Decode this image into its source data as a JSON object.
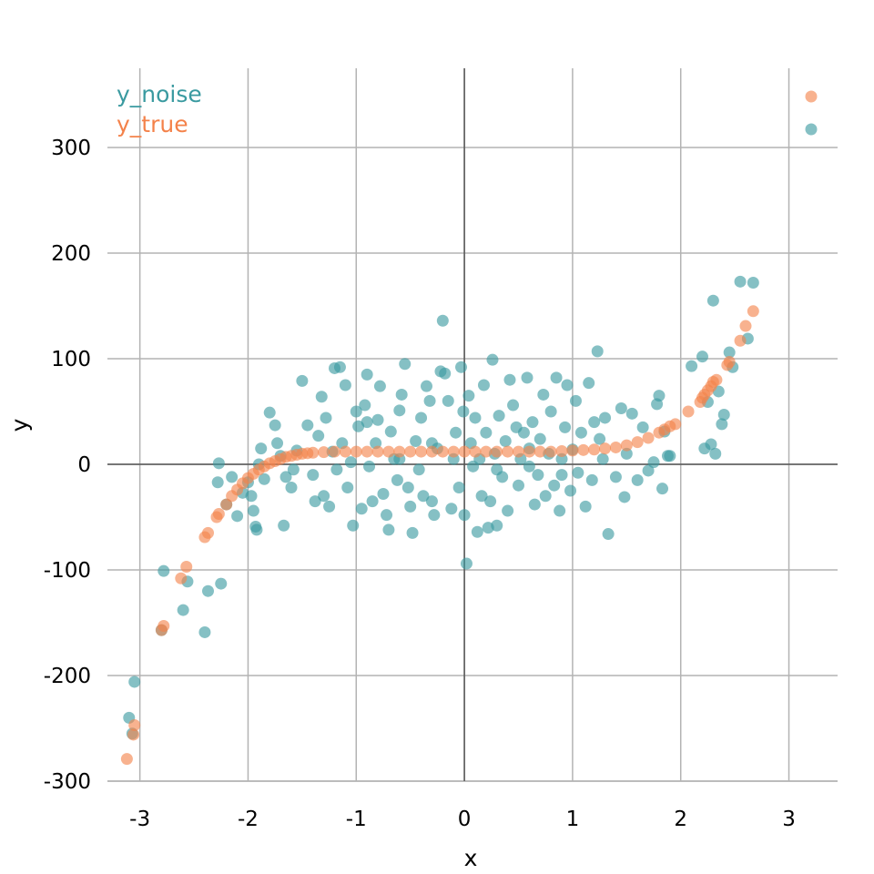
{
  "chart_data": {
    "type": "scatter",
    "title": "",
    "xlabel": "x",
    "ylabel": "y",
    "xlim": [
      -3.3,
      3.45
    ],
    "ylim": [
      -300,
      375
    ],
    "grid": true,
    "legend_position": "top-left",
    "x_ticks": [
      -3,
      -2,
      -1,
      0,
      1,
      2,
      3
    ],
    "y_ticks": [
      -300,
      -200,
      -100,
      0,
      100,
      200,
      300
    ],
    "x_tick_labels": [
      "-3",
      "-2",
      "-1",
      "0",
      "1",
      "2",
      "3"
    ],
    "y_tick_labels": [
      "-300",
      "-200",
      "-100",
      "0",
      "100",
      "200",
      "300"
    ],
    "series": [
      {
        "name": "y_noise",
        "color": "#3a9aa0",
        "points": [
          [
            -3.1,
            -240
          ],
          [
            -3.05,
            -206
          ],
          [
            -3.07,
            -255
          ],
          [
            -2.8,
            -157
          ],
          [
            -2.78,
            -101
          ],
          [
            -2.6,
            -138
          ],
          [
            -2.56,
            -111
          ],
          [
            -2.4,
            -159
          ],
          [
            -2.37,
            -120
          ],
          [
            -2.25,
            -113
          ],
          [
            -2.27,
            1
          ],
          [
            -2.28,
            -17
          ],
          [
            -2.2,
            -38
          ],
          [
            -2.15,
            -12
          ],
          [
            -2.1,
            -49
          ],
          [
            -2.05,
            -27
          ],
          [
            -2.0,
            -17
          ],
          [
            -1.97,
            -30
          ],
          [
            -1.95,
            -44
          ],
          [
            -1.93,
            -59
          ],
          [
            -1.92,
            -62
          ],
          [
            -1.9,
            0
          ],
          [
            -1.88,
            15
          ],
          [
            -1.85,
            -14
          ],
          [
            -1.8,
            49
          ],
          [
            -1.75,
            37
          ],
          [
            -1.73,
            20
          ],
          [
            -1.7,
            8
          ],
          [
            -1.67,
            -58
          ],
          [
            -1.65,
            -12
          ],
          [
            -1.6,
            -22
          ],
          [
            -1.58,
            -5
          ],
          [
            -1.55,
            13
          ],
          [
            -1.5,
            79
          ],
          [
            -1.45,
            37
          ],
          [
            -1.4,
            -10
          ],
          [
            -1.38,
            -35
          ],
          [
            -1.35,
            27
          ],
          [
            -1.32,
            64
          ],
          [
            -1.3,
            -30
          ],
          [
            -1.28,
            44
          ],
          [
            -1.25,
            -40
          ],
          [
            -1.22,
            12
          ],
          [
            -1.2,
            91
          ],
          [
            -1.18,
            -5
          ],
          [
            -1.15,
            92
          ],
          [
            -1.13,
            20
          ],
          [
            -1.1,
            75
          ],
          [
            -1.08,
            -22
          ],
          [
            -1.05,
            2
          ],
          [
            -1.03,
            -58
          ],
          [
            -1.0,
            50
          ],
          [
            -0.98,
            36
          ],
          [
            -0.95,
            -42
          ],
          [
            -0.92,
            56
          ],
          [
            -0.9,
            85
          ],
          [
            -0.88,
            -2
          ],
          [
            -0.85,
            -35
          ],
          [
            -0.82,
            20
          ],
          [
            -0.8,
            42
          ],
          [
            -0.78,
            74
          ],
          [
            -0.75,
            -28
          ],
          [
            -0.72,
            -48
          ],
          [
            -0.7,
            -62
          ],
          [
            -0.68,
            31
          ],
          [
            -0.65,
            5
          ],
          [
            -0.62,
            -15
          ],
          [
            -0.6,
            51
          ],
          [
            -0.58,
            66
          ],
          [
            -0.55,
            95
          ],
          [
            -0.52,
            -22
          ],
          [
            -0.5,
            -40
          ],
          [
            -0.48,
            -65
          ],
          [
            -0.45,
            22
          ],
          [
            -0.42,
            -5
          ],
          [
            -0.4,
            44
          ],
          [
            -0.38,
            -30
          ],
          [
            -0.35,
            74
          ],
          [
            -0.32,
            60
          ],
          [
            -0.3,
            -35
          ],
          [
            -0.28,
            -48
          ],
          [
            -0.25,
            15
          ],
          [
            -0.22,
            88
          ],
          [
            -0.2,
            136
          ],
          [
            -0.18,
            86
          ],
          [
            -0.15,
            60
          ],
          [
            -0.12,
            -42
          ],
          [
            -0.1,
            5
          ],
          [
            -0.08,
            30
          ],
          [
            -0.05,
            -22
          ],
          [
            -0.03,
            92
          ],
          [
            -0.01,
            50
          ],
          [
            0.0,
            -48
          ],
          [
            0.02,
            -94
          ],
          [
            0.04,
            65
          ],
          [
            0.06,
            20
          ],
          [
            0.08,
            -2
          ],
          [
            0.1,
            44
          ],
          [
            0.12,
            -64
          ],
          [
            0.14,
            5
          ],
          [
            0.16,
            -30
          ],
          [
            0.18,
            75
          ],
          [
            0.2,
            30
          ],
          [
            0.22,
            -60
          ],
          [
            0.24,
            -35
          ],
          [
            0.26,
            99
          ],
          [
            0.28,
            10
          ],
          [
            0.3,
            -58
          ],
          [
            0.32,
            46
          ],
          [
            0.35,
            -12
          ],
          [
            0.38,
            22
          ],
          [
            0.4,
            -44
          ],
          [
            0.42,
            80
          ],
          [
            0.45,
            56
          ],
          [
            0.48,
            35
          ],
          [
            0.5,
            -20
          ],
          [
            0.52,
            5
          ],
          [
            0.55,
            30
          ],
          [
            0.58,
            82
          ],
          [
            0.6,
            -2
          ],
          [
            0.63,
            40
          ],
          [
            0.65,
            -38
          ],
          [
            0.68,
            -10
          ],
          [
            0.7,
            24
          ],
          [
            0.73,
            66
          ],
          [
            0.75,
            -30
          ],
          [
            0.78,
            10
          ],
          [
            0.8,
            50
          ],
          [
            0.83,
            -20
          ],
          [
            0.85,
            82
          ],
          [
            0.88,
            -44
          ],
          [
            0.9,
            5
          ],
          [
            0.93,
            35
          ],
          [
            0.95,
            75
          ],
          [
            0.98,
            -25
          ],
          [
            1.0,
            14
          ],
          [
            1.03,
            60
          ],
          [
            1.05,
            -8
          ],
          [
            1.08,
            30
          ],
          [
            1.12,
            -40
          ],
          [
            1.15,
            77
          ],
          [
            1.18,
            -15
          ],
          [
            1.2,
            40
          ],
          [
            1.23,
            107
          ],
          [
            1.25,
            24
          ],
          [
            1.28,
            5
          ],
          [
            1.3,
            44
          ],
          [
            1.33,
            -66
          ],
          [
            1.4,
            -12
          ],
          [
            1.45,
            53
          ],
          [
            1.48,
            -31
          ],
          [
            1.5,
            10
          ],
          [
            1.55,
            48
          ],
          [
            1.6,
            -15
          ],
          [
            1.65,
            35
          ],
          [
            1.7,
            -6
          ],
          [
            1.75,
            2
          ],
          [
            1.78,
            57
          ],
          [
            1.8,
            65
          ],
          [
            1.83,
            -23
          ],
          [
            1.85,
            31
          ],
          [
            1.88,
            8
          ],
          [
            1.9,
            8
          ],
          [
            2.1,
            93
          ],
          [
            2.2,
            102
          ],
          [
            2.22,
            15
          ],
          [
            2.25,
            59
          ],
          [
            2.28,
            19
          ],
          [
            2.3,
            155
          ],
          [
            2.32,
            10
          ],
          [
            2.35,
            69
          ],
          [
            2.38,
            38
          ],
          [
            2.4,
            47
          ],
          [
            2.45,
            106
          ],
          [
            2.48,
            92
          ],
          [
            2.55,
            173
          ],
          [
            2.62,
            119
          ],
          [
            2.67,
            172
          ],
          [
            -0.9,
            40
          ],
          [
            -0.6,
            5
          ],
          [
            -0.3,
            20
          ],
          [
            0.3,
            -5
          ],
          [
            0.6,
            15
          ],
          [
            0.9,
            -10
          ]
        ]
      },
      {
        "name": "y_true",
        "color": "#f4824a",
        "points": [
          [
            -3.12,
            -279
          ],
          [
            -3.05,
            -247
          ],
          [
            -3.06,
            -256
          ],
          [
            -2.8,
            -157
          ],
          [
            -2.78,
            -153
          ],
          [
            -2.62,
            -108
          ],
          [
            -2.57,
            -97
          ],
          [
            -2.4,
            -69
          ],
          [
            -2.37,
            -65
          ],
          [
            -2.29,
            -50
          ],
          [
            -2.27,
            -47
          ],
          [
            -2.2,
            -38
          ],
          [
            -2.15,
            -30
          ],
          [
            -2.1,
            -24
          ],
          [
            -2.05,
            -18
          ],
          [
            -2.0,
            -13
          ],
          [
            -1.95,
            -9
          ],
          [
            -1.9,
            -5
          ],
          [
            -1.85,
            -2
          ],
          [
            -1.8,
            1
          ],
          [
            -1.75,
            3
          ],
          [
            -1.7,
            5
          ],
          [
            -1.65,
            7
          ],
          [
            -1.6,
            8
          ],
          [
            -1.55,
            9
          ],
          [
            -1.5,
            10
          ],
          [
            -1.45,
            10.5
          ],
          [
            -1.4,
            11
          ],
          [
            -1.3,
            11.5
          ],
          [
            -1.2,
            12
          ],
          [
            -1.1,
            12
          ],
          [
            -1.0,
            12
          ],
          [
            -0.9,
            12
          ],
          [
            -0.8,
            12
          ],
          [
            -0.7,
            12
          ],
          [
            -0.6,
            12
          ],
          [
            -0.5,
            12
          ],
          [
            -0.4,
            12
          ],
          [
            -0.3,
            12
          ],
          [
            -0.2,
            12
          ],
          [
            -0.1,
            12
          ],
          [
            0.0,
            12
          ],
          [
            0.1,
            12
          ],
          [
            0.2,
            12
          ],
          [
            0.3,
            12
          ],
          [
            0.4,
            12
          ],
          [
            0.5,
            12
          ],
          [
            0.6,
            12
          ],
          [
            0.7,
            12
          ],
          [
            0.8,
            12
          ],
          [
            0.9,
            12.5
          ],
          [
            1.0,
            13
          ],
          [
            1.1,
            13.5
          ],
          [
            1.2,
            14
          ],
          [
            1.3,
            15
          ],
          [
            1.4,
            16
          ],
          [
            1.5,
            18
          ],
          [
            1.6,
            21
          ],
          [
            1.7,
            25
          ],
          [
            1.8,
            30
          ],
          [
            1.85,
            33
          ],
          [
            1.9,
            36
          ],
          [
            1.95,
            38
          ],
          [
            2.07,
            50
          ],
          [
            2.18,
            59
          ],
          [
            2.2,
            63
          ],
          [
            2.22,
            66
          ],
          [
            2.25,
            70
          ],
          [
            2.28,
            74
          ],
          [
            2.3,
            78
          ],
          [
            2.33,
            80
          ],
          [
            2.43,
            94
          ],
          [
            2.45,
            97
          ],
          [
            2.55,
            117
          ],
          [
            2.6,
            131
          ],
          [
            2.67,
            145
          ]
        ]
      }
    ]
  }
}
